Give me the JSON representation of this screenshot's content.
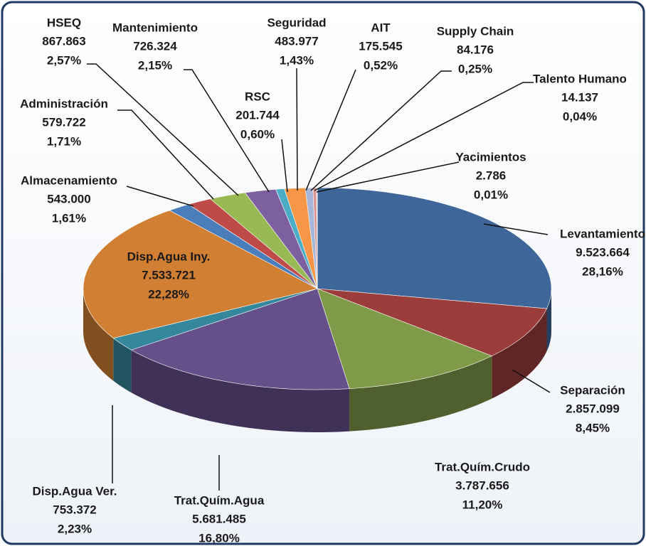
{
  "chart_data": {
    "type": "pie",
    "categories": [
      "Levantamiento",
      "Separación",
      "Trat.Quím.Crudo",
      "Trat.Quím.Agua",
      "Disp.Agua Ver.",
      "Disp.Agua Iny.",
      "Almacenamiento",
      "Administración",
      "HSEQ",
      "Mantenimiento",
      "RSC",
      "Seguridad",
      "AIT",
      "Supply Chain",
      "Talento Humano",
      "Yacimientos"
    ],
    "values": [
      9523664,
      2857099,
      3787656,
      5681485,
      753372,
      7533721,
      543000,
      579722,
      867863,
      726324,
      201744,
      483977,
      175545,
      84176,
      14137,
      2786
    ],
    "value_labels": [
      "9.523.664",
      "2.857.099",
      "3.787.656",
      "5.681.485",
      "753.372",
      "7.533.721",
      "543.000",
      "579.722",
      "867.863",
      "726.324",
      "201.744",
      "483.977",
      "175.545",
      "84.176",
      "14.137",
      "2.786"
    ],
    "percentages": [
      28.16,
      8.45,
      11.2,
      16.8,
      2.23,
      22.28,
      1.61,
      1.71,
      2.57,
      2.15,
      0.6,
      1.43,
      0.52,
      0.25,
      0.04,
      0.01
    ],
    "percentage_labels": [
      "28,16%",
      "8,45%",
      "11,20%",
      "16,80%",
      "2,23%",
      "22,28%",
      "1,61%",
      "1,71%",
      "2,57%",
      "2,15%",
      "0,60%",
      "1,43%",
      "0,52%",
      "0,25%",
      "0,04%",
      "0,01%"
    ],
    "colors": [
      "#3f6698",
      "#9b3d3b",
      "#7f9a48",
      "#65508a",
      "#35879c",
      "#d07f33",
      "#4a7ebb",
      "#be4b48",
      "#98b954",
      "#7d60a0",
      "#4bacc6",
      "#f79646",
      "#a5b6d8",
      "#d99694",
      "#c3d69b",
      "#b3a2c7"
    ]
  }
}
